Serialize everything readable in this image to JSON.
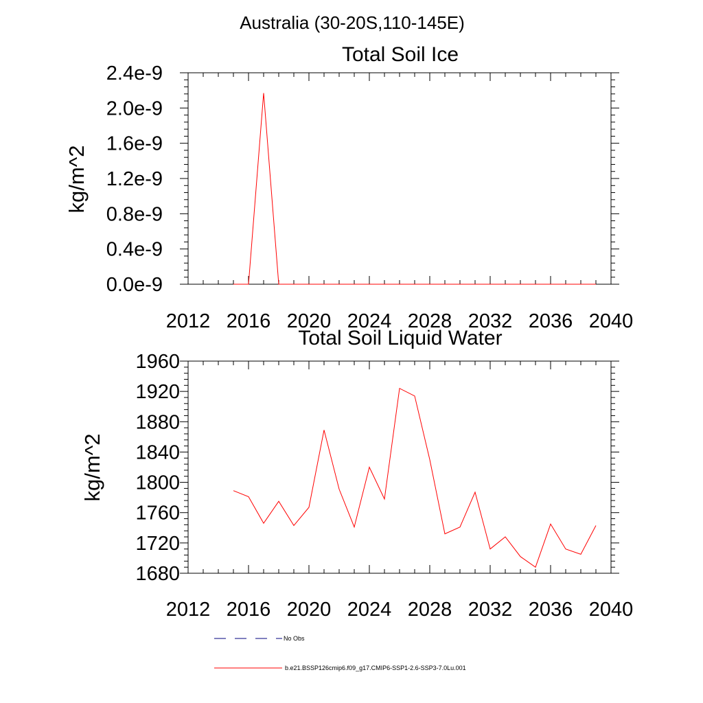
{
  "suptitle": "Australia (30-20S,110-145E)",
  "chart_data": [
    {
      "type": "line",
      "title": "Total Soil Ice",
      "xlabel": "",
      "ylabel": "kg/m^2",
      "xlim": [
        2012,
        2040
      ],
      "ylim": [
        0.0,
        2.4e-09
      ],
      "x_ticks": [
        2012,
        2016,
        2020,
        2024,
        2028,
        2032,
        2036,
        2040
      ],
      "x_tick_labels": [
        "2012",
        "2016",
        "2020",
        "2024",
        "2028",
        "2032",
        "2036",
        "2040"
      ],
      "y_ticks": [
        0.0,
        4e-10,
        8e-10,
        1.2e-09,
        1.6e-09,
        2e-09,
        2.4e-09
      ],
      "y_tick_labels": [
        "0.0e-9",
        "0.4e-9",
        "0.8e-9",
        "1.2e-9",
        "1.6e-9",
        "2.0e-9",
        "2.4e-9"
      ],
      "grid": false,
      "series": [
        {
          "name": "b.e21.BSSP126cmip6.f09_g17.CMIP6-SSP1-2.6-SSP3-7.0Lu.001",
          "color": "#ff0000",
          "x": [
            2015,
            2016,
            2017,
            2018,
            2019,
            2020,
            2021,
            2022,
            2023,
            2024,
            2025,
            2026,
            2027,
            2028,
            2029,
            2030,
            2031,
            2032,
            2033,
            2034,
            2035,
            2036,
            2037,
            2038,
            2039
          ],
          "values": [
            0,
            0,
            2.17e-09,
            0,
            0,
            0,
            0,
            0,
            0,
            0,
            0,
            0,
            0,
            0,
            0,
            0,
            0,
            0,
            0,
            0,
            0,
            0,
            0,
            0,
            0
          ]
        }
      ]
    },
    {
      "type": "line",
      "title": "Total Soil Liquid Water",
      "xlabel": "",
      "ylabel": "kg/m^2",
      "xlim": [
        2012,
        2040
      ],
      "ylim": [
        1680,
        1960
      ],
      "x_ticks": [
        2012,
        2016,
        2020,
        2024,
        2028,
        2032,
        2036,
        2040
      ],
      "x_tick_labels": [
        "2012",
        "2016",
        "2020",
        "2024",
        "2028",
        "2032",
        "2036",
        "2040"
      ],
      "y_ticks": [
        1680,
        1720,
        1760,
        1800,
        1840,
        1880,
        1920,
        1960
      ],
      "y_tick_labels": [
        "1680",
        "1720",
        "1760",
        "1800",
        "1840",
        "1880",
        "1920",
        "1960"
      ],
      "grid": false,
      "series": [
        {
          "name": "b.e21.BSSP126cmip6.f09_g17.CMIP6-SSP1-2.6-SSP3-7.0Lu.001",
          "color": "#ff0000",
          "x": [
            2015,
            2016,
            2017,
            2018,
            2019,
            2020,
            2021,
            2022,
            2023,
            2024,
            2025,
            2026,
            2027,
            2028,
            2029,
            2030,
            2031,
            2032,
            2033,
            2034,
            2035,
            2036,
            2037,
            2038,
            2039
          ],
          "values": [
            1789,
            1781,
            1746,
            1775,
            1743,
            1767,
            1869,
            1791,
            1741,
            1820,
            1778,
            1924,
            1914,
            1830,
            1732,
            1741,
            1787,
            1712,
            1728,
            1702,
            1688,
            1745,
            1712,
            1705,
            1743
          ]
        }
      ]
    }
  ],
  "legend": {
    "placement": "bottom",
    "items": [
      {
        "label": "No Obs",
        "style": "dashed",
        "color": "#00007f"
      },
      {
        "label": "b.e21.BSSP126cmip6.f09_g17.CMIP6-SSP1-2.6-SSP3-7.0Lu.001",
        "style": "solid",
        "color": "#ff0000"
      }
    ]
  }
}
